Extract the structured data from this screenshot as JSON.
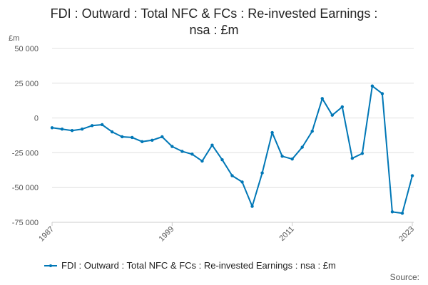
{
  "title_line1": "FDI : Outward : Total NFC & FCs : Re-invested Earnings :",
  "title_line2": "nsa : £m",
  "unit_label": "£m",
  "source_label": "Source:",
  "colors": {
    "series": "#0077b6",
    "grid": "#e0e0e0",
    "axis": "#cccccc"
  },
  "chart_data": {
    "type": "line",
    "title": "FDI : Outward : Total NFC & FCs : Re-invested Earnings : nsa : £m",
    "ylabel": "£m",
    "xlim": [
      1987,
      2023
    ],
    "ylim": [
      -75000,
      50000
    ],
    "y_ticks": [
      50000,
      25000,
      0,
      -25000,
      -50000,
      -75000
    ],
    "y_tick_labels": [
      "50 000",
      "25 000",
      "0",
      "-25 000",
      "-50 000",
      "-75 000"
    ],
    "x_ticks": [
      1987,
      1999,
      2011,
      2023
    ],
    "x_tick_labels": [
      "1987",
      "1999",
      "2011",
      "2023"
    ],
    "grid": true,
    "legend_position": "bottom",
    "series": [
      {
        "name": "FDI : Outward : Total NFC & FCs : Re-invested Earnings : nsa : £m",
        "x": [
          1987,
          1988,
          1989,
          1990,
          1991,
          1992,
          1993,
          1994,
          1995,
          1996,
          1997,
          1998,
          1999,
          2000,
          2001,
          2002,
          2003,
          2004,
          2005,
          2006,
          2007,
          2008,
          2009,
          2010,
          2011,
          2012,
          2013,
          2014,
          2015,
          2016,
          2017,
          2018,
          2019,
          2020,
          2021,
          2022,
          2023
        ],
        "values": [
          -7000,
          -8000,
          -9000,
          -8000,
          -5500,
          -4800,
          -10000,
          -13500,
          -14000,
          -17000,
          -16000,
          -13500,
          -20500,
          -24000,
          -26000,
          -31000,
          -19500,
          -30000,
          -41500,
          -46000,
          -63500,
          -39500,
          -10500,
          -27500,
          -29500,
          -21000,
          -9500,
          14000,
          2000,
          8000,
          -29000,
          -25500,
          23000,
          17500,
          -67500,
          -68500,
          -41500
        ]
      }
    ]
  }
}
